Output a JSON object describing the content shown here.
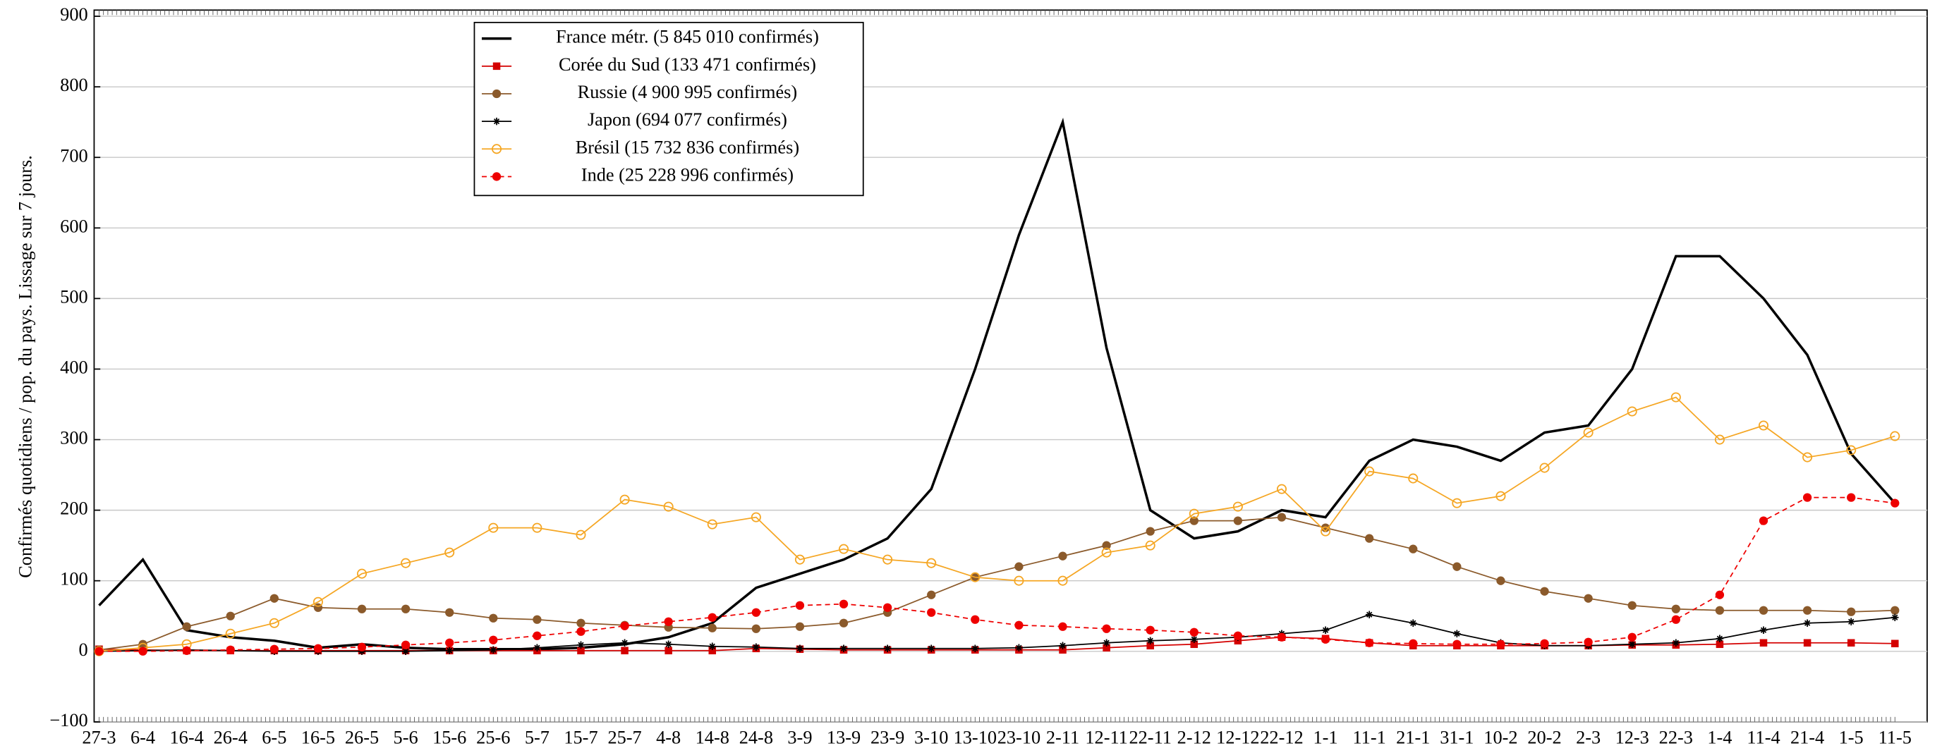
{
  "chart_data": {
    "type": "line",
    "y_label": "Confirmés quotidiens / pop. du pays. Lissage sur 7 jours.",
    "categories": [
      "27-3",
      "6-4",
      "16-4",
      "26-4",
      "6-5",
      "16-5",
      "26-5",
      "5-6",
      "15-6",
      "25-6",
      "5-7",
      "15-7",
      "25-7",
      "4-8",
      "14-8",
      "24-8",
      "3-9",
      "13-9",
      "23-9",
      "3-10",
      "13-10",
      "23-10",
      "2-11",
      "12-11",
      "22-11",
      "2-12",
      "12-12",
      "22-12",
      "1-1",
      "11-1",
      "21-1",
      "31-1",
      "10-2",
      "20-2",
      "2-3",
      "12-3",
      "22-3",
      "1-4",
      "11-4",
      "21-4",
      "1-5",
      "11-5"
    ],
    "ylim": [
      -100,
      900
    ],
    "yticks": [
      {
        "value": -100,
        "label": "−100"
      },
      0,
      100,
      200,
      300,
      400,
      500,
      600,
      700,
      800,
      900
    ],
    "grid": true,
    "legend": "top-left",
    "series": [
      {
        "name": "France métr. (5 845 010 confirmés)",
        "color": "#000000",
        "marker": "none",
        "values": [
          65,
          130,
          30,
          20,
          15,
          5,
          10,
          5,
          3,
          3,
          3,
          5,
          10,
          20,
          40,
          90,
          110,
          130,
          160,
          230,
          400,
          590,
          750,
          430,
          200,
          160,
          170,
          200,
          190,
          270,
          300,
          290,
          270,
          310,
          320,
          400,
          560,
          560,
          500,
          420,
          280,
          210
        ]
      },
      {
        "name": "Corée du Sud (133 471 confirmés)",
        "color": "#d40000",
        "marker": "square",
        "values": [
          3,
          2,
          1,
          1,
          1,
          1,
          1,
          1,
          1,
          1,
          1,
          1,
          1,
          1,
          1,
          4,
          3,
          2,
          2,
          2,
          2,
          2,
          2,
          5,
          8,
          10,
          15,
          20,
          18,
          12,
          8,
          8,
          8,
          8,
          8,
          9,
          9,
          10,
          12,
          12,
          12,
          11
        ]
      },
      {
        "name": "Russie (4 900 995 confirmés)",
        "color": "#8b5a2b",
        "marker": "circle",
        "values": [
          2,
          10,
          35,
          50,
          75,
          62,
          60,
          60,
          55,
          47,
          45,
          40,
          37,
          34,
          33,
          32,
          35,
          40,
          55,
          80,
          105,
          120,
          135,
          150,
          170,
          185,
          185,
          190,
          175,
          160,
          145,
          120,
          100,
          85,
          75,
          65,
          60,
          58,
          58,
          58,
          56,
          58
        ]
      },
      {
        "name": "Japon (694 077 confirmés)",
        "color": "#000000",
        "marker": "star",
        "values": [
          0,
          1,
          2,
          1,
          0,
          0,
          0,
          0,
          1,
          2,
          5,
          9,
          12,
          10,
          7,
          6,
          4,
          4,
          4,
          4,
          4,
          5,
          8,
          12,
          15,
          17,
          20,
          25,
          30,
          52,
          40,
          25,
          12,
          8,
          8,
          10,
          12,
          18,
          30,
          40,
          42,
          48
        ]
      },
      {
        "name": "Brésil (15 732 836 confirmés)",
        "color": "#f5a623",
        "marker": "open-circle",
        "values": [
          0,
          5,
          10,
          25,
          40,
          70,
          110,
          125,
          140,
          175,
          175,
          165,
          215,
          205,
          180,
          190,
          130,
          145,
          130,
          125,
          105,
          100,
          100,
          140,
          150,
          195,
          205,
          230,
          170,
          255,
          245,
          210,
          220,
          260,
          310,
          340,
          360,
          300,
          320,
          275,
          285,
          305
        ]
      },
      {
        "name": "Inde (25 228 996 confirmés)",
        "color": "#ee0000",
        "marker": "circle",
        "dashed": true,
        "values": [
          0,
          0,
          1,
          2,
          3,
          4,
          6,
          9,
          12,
          16,
          22,
          28,
          36,
          42,
          48,
          55,
          65,
          67,
          62,
          55,
          45,
          37,
          35,
          32,
          30,
          27,
          22,
          20,
          17,
          12,
          11,
          10,
          10,
          11,
          13,
          20,
          45,
          80,
          185,
          218,
          218,
          210
        ]
      }
    ]
  }
}
